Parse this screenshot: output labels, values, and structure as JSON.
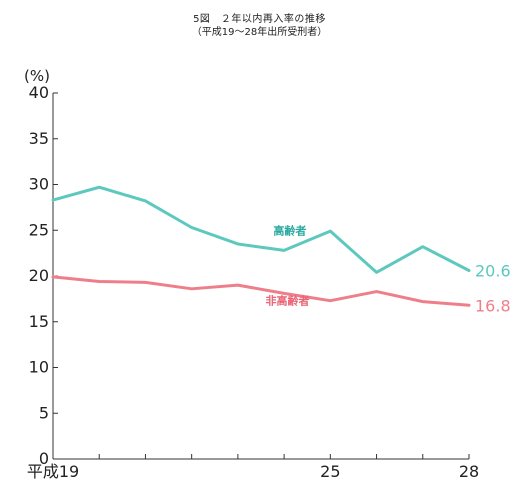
{
  "chart_title": "5図　２年以内再入率の推移",
  "chart_subtitle": "（平成19～28年出所受刑者）",
  "chart_data": {
    "type": "line",
    "title": "5図　２年以内再入率の推移",
    "subtitle": "（平成19～28年出所受刑者）",
    "ylabel": "(%)",
    "ylim": [
      0,
      40
    ],
    "yticks": [
      "0",
      "5",
      "10",
      "15",
      "20",
      "25",
      "30",
      "35",
      "40"
    ],
    "x": [
      19,
      20,
      21,
      22,
      23,
      24,
      25,
      26,
      27,
      28
    ],
    "x_tick_labels": [
      {
        "x": 19,
        "label": "平成19"
      },
      {
        "x": 25,
        "label": "25"
      },
      {
        "x": 28,
        "label": "28"
      }
    ],
    "grid": false,
    "series": [
      {
        "name": "高齢者",
        "color": "#5cc8be",
        "values": [
          28.3,
          29.7,
          28.2,
          25.3,
          23.5,
          22.8,
          24.9,
          20.4,
          23.2,
          20.6
        ],
        "end_label": "20.6"
      },
      {
        "name": "非高齢者",
        "color": "#ee7f8a",
        "values": [
          19.9,
          19.4,
          19.3,
          18.6,
          19.0,
          18.1,
          17.3,
          18.3,
          17.2,
          16.8
        ],
        "end_label": "16.8"
      }
    ]
  }
}
